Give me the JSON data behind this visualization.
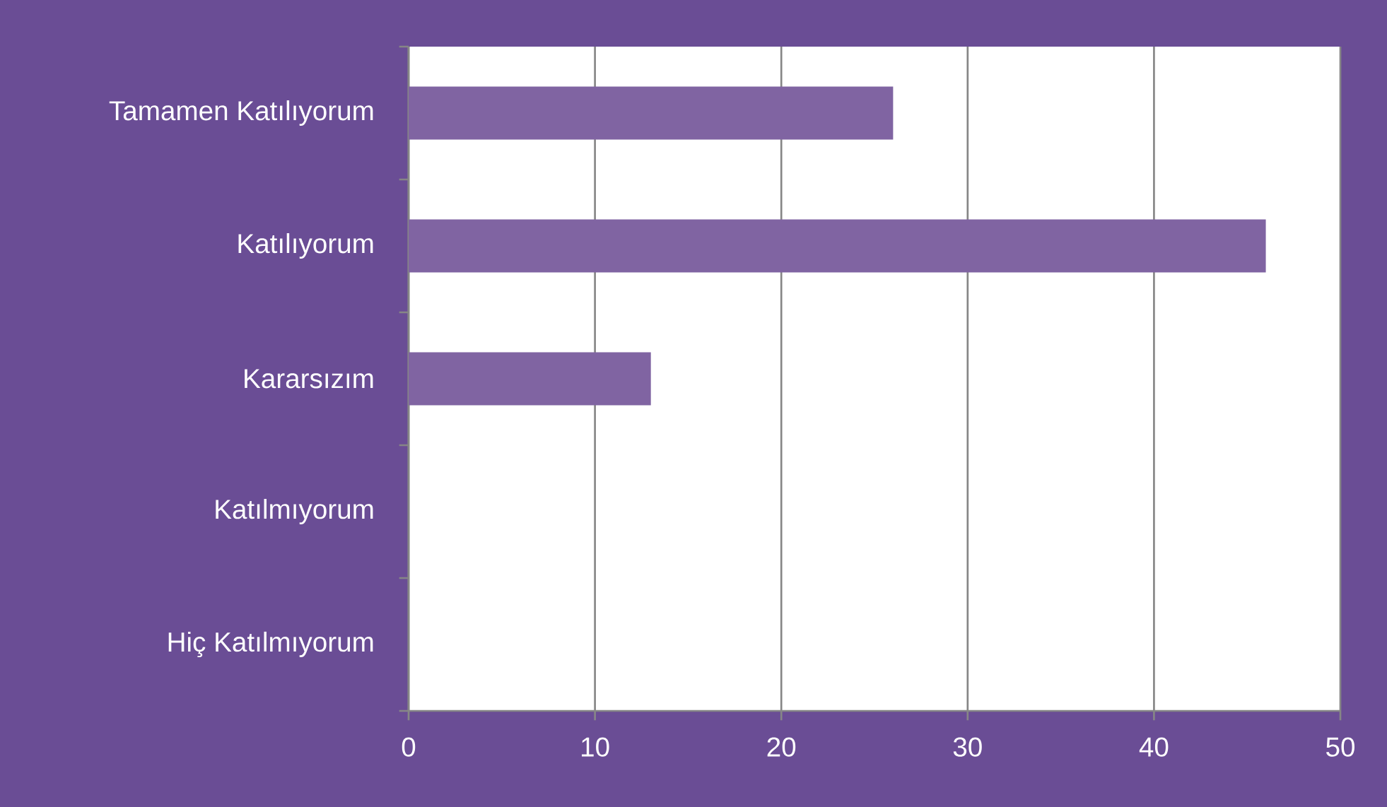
{
  "chart_data": {
    "type": "bar",
    "orientation": "horizontal",
    "categories": [
      "Tamamen Katılıyorum",
      "Katılıyorum",
      "Kararsızım",
      "Katılmıyorum",
      "Hiç Katılmıyorum"
    ],
    "values": [
      26,
      46,
      13,
      0,
      0
    ],
    "color": "#8064a2",
    "xlim": [
      0,
      50
    ],
    "xticks": [
      0,
      10,
      20,
      30,
      40,
      50
    ],
    "grid": "x"
  }
}
